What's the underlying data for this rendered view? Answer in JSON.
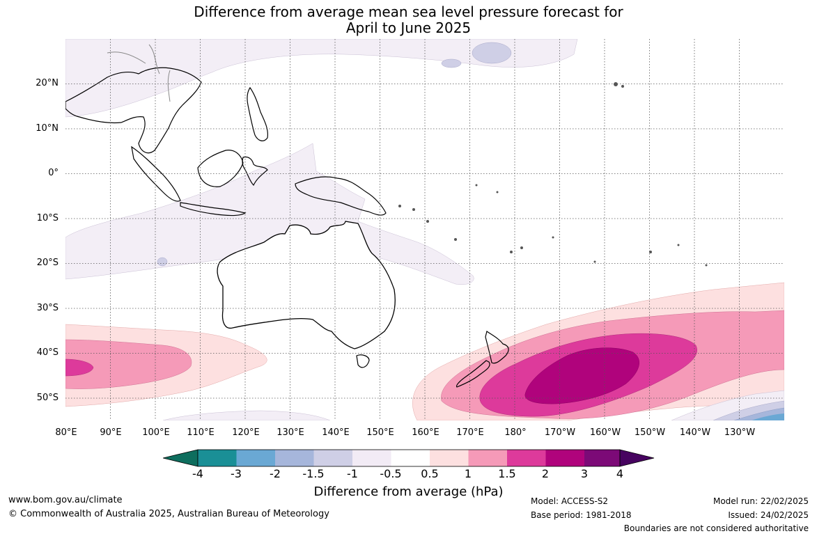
{
  "title": {
    "line1": "Difference from average mean sea level pressure forecast for",
    "line2": "April to June 2025"
  },
  "map": {
    "lat_labels": [
      "20°N",
      "10°N",
      "0°",
      "10°S",
      "20°S",
      "30°S",
      "40°S",
      "50°S"
    ],
    "lon_labels": [
      "80°E",
      "90°E",
      "100°E",
      "110°E",
      "120°E",
      "130°E",
      "140°E",
      "150°E",
      "160°E",
      "170°E",
      "180°",
      "170°W",
      "160°W",
      "150°W",
      "140°W",
      "130°W"
    ],
    "grid": "dotted",
    "land_outline_color": "#000000"
  },
  "legend": {
    "ticks": [
      "-4",
      "-3",
      "-2",
      "-1.5",
      "-1",
      "-0.5",
      "0.5",
      "1",
      "1.5",
      "2",
      "3",
      "4"
    ],
    "colors": [
      "#0e6e5e",
      "#1a8f96",
      "#6aa8d4",
      "#a6b6db",
      "#cfcfe6",
      "#f2ebf5",
      "#ffffff",
      "#fde0e0",
      "#f59ab8",
      "#dd3a9b",
      "#b0037c",
      "#7c0a77",
      "#470460"
    ],
    "label": "Difference from average (hPa)"
  },
  "footer": {
    "url": "www.bom.gov.au/climate",
    "copyright": "© Commonwealth of Australia 2025, Australian Bureau of Meteorology",
    "model": "Model: ACCESS-S2",
    "base_period": "Base period: 1981-2018",
    "model_run": "Model run: 22/02/2025",
    "issued": "Issued: 24/02/2025",
    "disclaimer": "Boundaries are not considered authoritative"
  }
}
